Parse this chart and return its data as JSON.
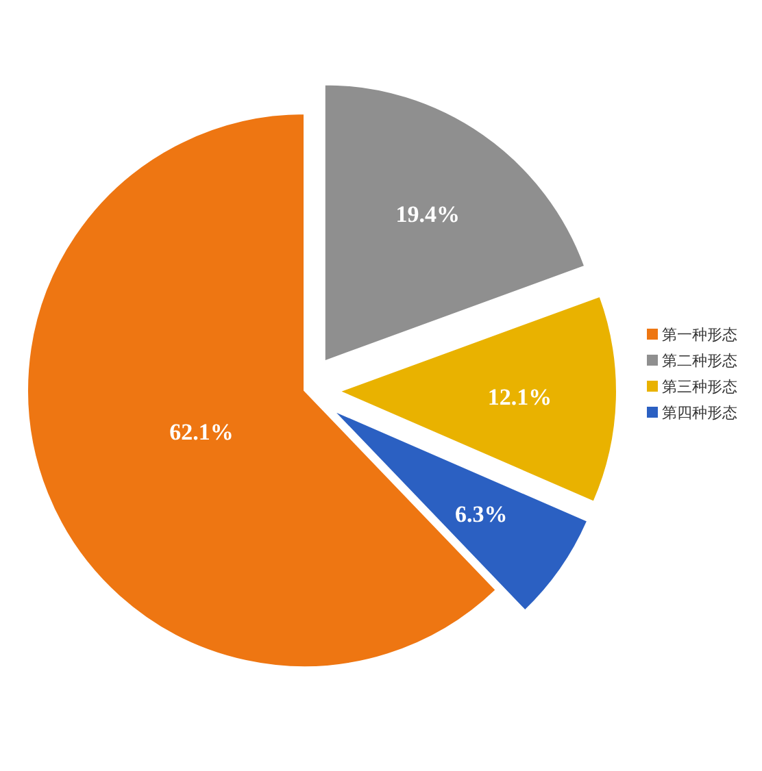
{
  "chart_data": {
    "type": "pie",
    "categories": [
      "第一种形态",
      "第二种形态",
      "第三种形态",
      "第四种形态"
    ],
    "values": [
      62.1,
      19.4,
      12.1,
      6.3
    ],
    "colors": [
      "#ee7612",
      "#8f8f8f",
      "#e9b200",
      "#2b60c2"
    ],
    "value_labels": [
      "62.1%",
      "19.4%",
      "12.1%",
      "6.3%"
    ],
    "legend": "right"
  }
}
